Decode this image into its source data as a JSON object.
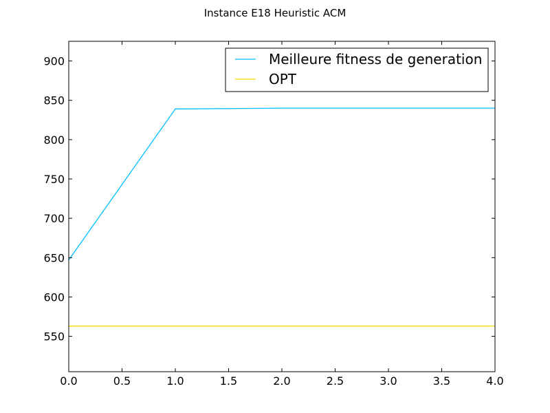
{
  "chart_data": {
    "type": "line",
    "title": "Instance E18 Heuristic ACM",
    "xlabel": "",
    "ylabel": "",
    "xlim": [
      0.0,
      4.0
    ],
    "ylim": [
      505,
      925
    ],
    "x_ticks": [
      "0.0",
      "0.5",
      "1.0",
      "1.5",
      "2.0",
      "2.5",
      "3.0",
      "3.5",
      "4.0"
    ],
    "y_ticks": [
      "550",
      "600",
      "650",
      "700",
      "750",
      "800",
      "850",
      "900"
    ],
    "x_tick_values": [
      0.0,
      0.5,
      1.0,
      1.5,
      2.0,
      2.5,
      3.0,
      3.5,
      4.0
    ],
    "y_tick_values": [
      550,
      600,
      650,
      700,
      750,
      800,
      850,
      900
    ],
    "grid": false,
    "legend_position": "top-right",
    "series": [
      {
        "name": "Meilleure fitness de generation",
        "color": "#00bfff",
        "x": [
          0,
          1,
          2,
          3,
          4
        ],
        "y": [
          647,
          839,
          840,
          840,
          840
        ]
      },
      {
        "name": "OPT",
        "color": "#ffd700",
        "x": [
          0,
          1,
          2,
          3,
          4
        ],
        "y": [
          563,
          563,
          563,
          563,
          563
        ]
      }
    ]
  }
}
